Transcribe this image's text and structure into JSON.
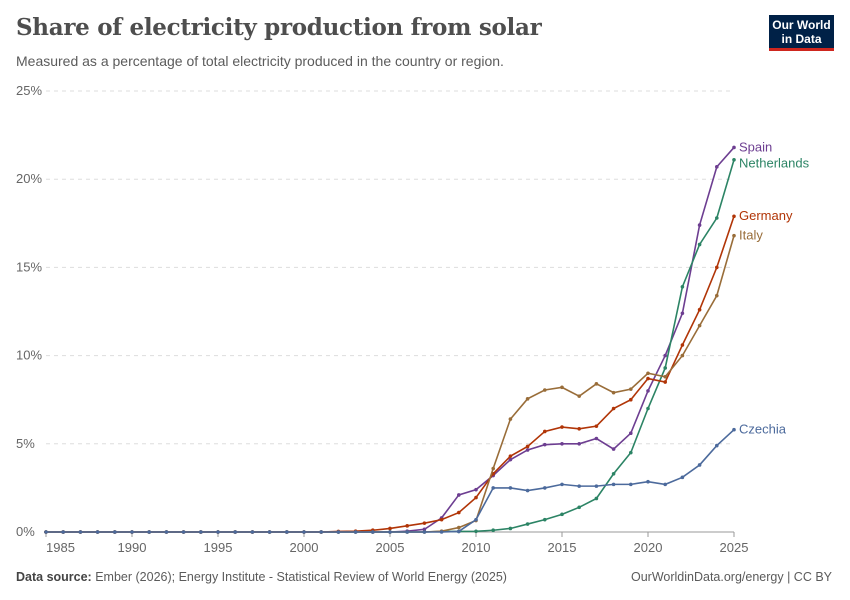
{
  "header": {
    "title": "Share of electricity production from solar",
    "subtitle": "Measured as a percentage of total electricity produced in the country or region.",
    "logo_text": "Our World in Data"
  },
  "footer": {
    "source_label": "Data source:",
    "source_text": "Ember (2026); Energy Institute - Statistical Review of World Energy (2025)",
    "url_license": "OurWorldinData.org/energy | CC BY"
  },
  "chart_data": {
    "type": "line",
    "title": "Share of electricity production from solar",
    "xlabel": "",
    "ylabel": "",
    "xlim": [
      1985,
      2025
    ],
    "ylim": [
      0,
      25
    ],
    "x_ticks": [
      "1985",
      "1990",
      "1995",
      "2000",
      "2005",
      "2010",
      "2015",
      "2020",
      "2025"
    ],
    "y_ticks": [
      "0%",
      "5%",
      "10%",
      "15%",
      "20%",
      "25%"
    ],
    "grid": "horizontal dashed",
    "legend": "inline labels at line ends (right)",
    "x": [
      1985,
      1986,
      1987,
      1988,
      1989,
      1990,
      1991,
      1992,
      1993,
      1994,
      1995,
      1996,
      1997,
      1998,
      1999,
      2000,
      2001,
      2002,
      2003,
      2004,
      2005,
      2006,
      2007,
      2008,
      2009,
      2010,
      2011,
      2012,
      2013,
      2014,
      2015,
      2016,
      2017,
      2018,
      2019,
      2020,
      2021,
      2022,
      2023,
      2024,
      2025
    ],
    "series": [
      {
        "name": "Spain",
        "color": "#6D3E91",
        "values": [
          0,
          0,
          0,
          0,
          0,
          0,
          0,
          0,
          0,
          0,
          0,
          0,
          0,
          0,
          0,
          0,
          0,
          0,
          0,
          0,
          0,
          0.05,
          0.15,
          0.8,
          2.1,
          2.4,
          3.2,
          4.1,
          4.65,
          4.95,
          5.0,
          5.0,
          5.3,
          4.7,
          5.6,
          8.0,
          10.0,
          12.4,
          17.4,
          20.7,
          21.8
        ]
      },
      {
        "name": "Netherlands",
        "color": "#2C8465",
        "values": [
          0,
          0,
          0,
          0,
          0,
          0,
          0,
          0,
          0,
          0,
          0,
          0,
          0,
          0,
          0,
          0,
          0,
          0,
          0,
          0,
          0,
          0,
          0,
          0.03,
          0.03,
          0.04,
          0.1,
          0.2,
          0.45,
          0.7,
          1.0,
          1.4,
          1.9,
          3.3,
          4.5,
          7.0,
          9.3,
          13.9,
          16.3,
          17.8,
          21.1
        ]
      },
      {
        "name": "Germany",
        "color": "#B13507",
        "values": [
          0,
          0,
          0,
          0,
          0,
          0,
          0,
          0,
          0,
          0,
          0,
          0,
          0,
          0,
          0,
          0,
          0,
          0.03,
          0.05,
          0.1,
          0.2,
          0.35,
          0.5,
          0.7,
          1.1,
          1.95,
          3.3,
          4.3,
          4.85,
          5.7,
          5.95,
          5.85,
          6.0,
          7.0,
          7.5,
          8.7,
          8.5,
          10.6,
          12.6,
          15.0,
          17.9
        ]
      },
      {
        "name": "Italy",
        "color": "#996D39",
        "values": [
          0,
          0,
          0,
          0,
          0,
          0,
          0,
          0,
          0,
          0,
          0,
          0,
          0,
          0,
          0,
          0,
          0,
          0,
          0,
          0,
          0,
          0,
          0,
          0.05,
          0.25,
          0.65,
          3.6,
          6.4,
          7.55,
          8.05,
          8.2,
          7.7,
          8.4,
          7.9,
          8.1,
          9.0,
          8.8,
          10.0,
          11.7,
          13.4,
          16.8
        ]
      },
      {
        "name": "Czechia",
        "color": "#4C6A9C",
        "values": [
          0,
          0,
          0,
          0,
          0,
          0,
          0,
          0,
          0,
          0,
          0,
          0,
          0,
          0,
          0,
          0,
          0,
          0,
          0,
          0,
          0,
          0,
          0,
          0,
          0.03,
          0.7,
          2.5,
          2.5,
          2.35,
          2.5,
          2.7,
          2.6,
          2.6,
          2.7,
          2.7,
          2.85,
          2.7,
          3.1,
          3.8,
          4.9,
          5.8
        ]
      }
    ]
  }
}
